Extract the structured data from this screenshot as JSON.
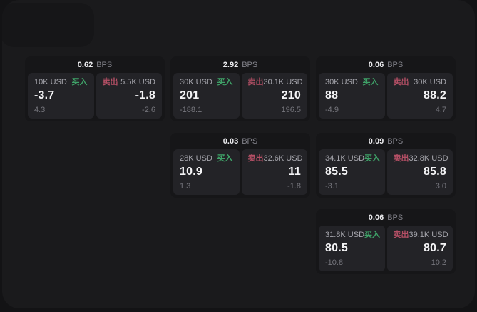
{
  "labels": {
    "bps_unit": "BPS",
    "buy": "买入",
    "sell": "卖出"
  },
  "colors": {
    "buy": "#3fa268",
    "sell": "#b44f65",
    "panel": "#1a1a1c",
    "card": "#161618",
    "subcard": "#232327"
  },
  "cards": [
    {
      "row": 1,
      "col": 1,
      "bps": "0.62",
      "buy": {
        "size": "10K USD",
        "value": "-3.7",
        "delta": "4.3"
      },
      "sell": {
        "size": "5.5K USD",
        "value": "-1.8",
        "delta": "-2.6"
      }
    },
    {
      "row": 1,
      "col": 2,
      "bps": "2.92",
      "buy": {
        "size": "30K USD",
        "value": "201",
        "delta": "-188.1"
      },
      "sell": {
        "size": "30.1K USD",
        "value": "210",
        "delta": "196.5"
      }
    },
    {
      "row": 1,
      "col": 3,
      "bps": "0.06",
      "buy": {
        "size": "30K USD",
        "value": "88",
        "delta": "-4.9"
      },
      "sell": {
        "size": "30K USD",
        "value": "88.2",
        "delta": "4.7"
      }
    },
    {
      "row": 2,
      "col": 2,
      "bps": "0.03",
      "buy": {
        "size": "28K USD",
        "value": "10.9",
        "delta": "1.3"
      },
      "sell": {
        "size": "32.6K USD",
        "value": "11",
        "delta": "-1.8"
      }
    },
    {
      "row": 2,
      "col": 3,
      "bps": "0.09",
      "buy": {
        "size": "34.1K USD",
        "value": "85.5",
        "delta": "-3.1"
      },
      "sell": {
        "size": "32.8K USD",
        "value": "85.8",
        "delta": "3.0"
      }
    },
    {
      "row": 3,
      "col": 3,
      "bps": "0.06",
      "buy": {
        "size": "31.8K USD",
        "value": "80.5",
        "delta": "-10.8"
      },
      "sell": {
        "size": "39.1K USD",
        "value": "80.7",
        "delta": "10.2"
      }
    }
  ]
}
